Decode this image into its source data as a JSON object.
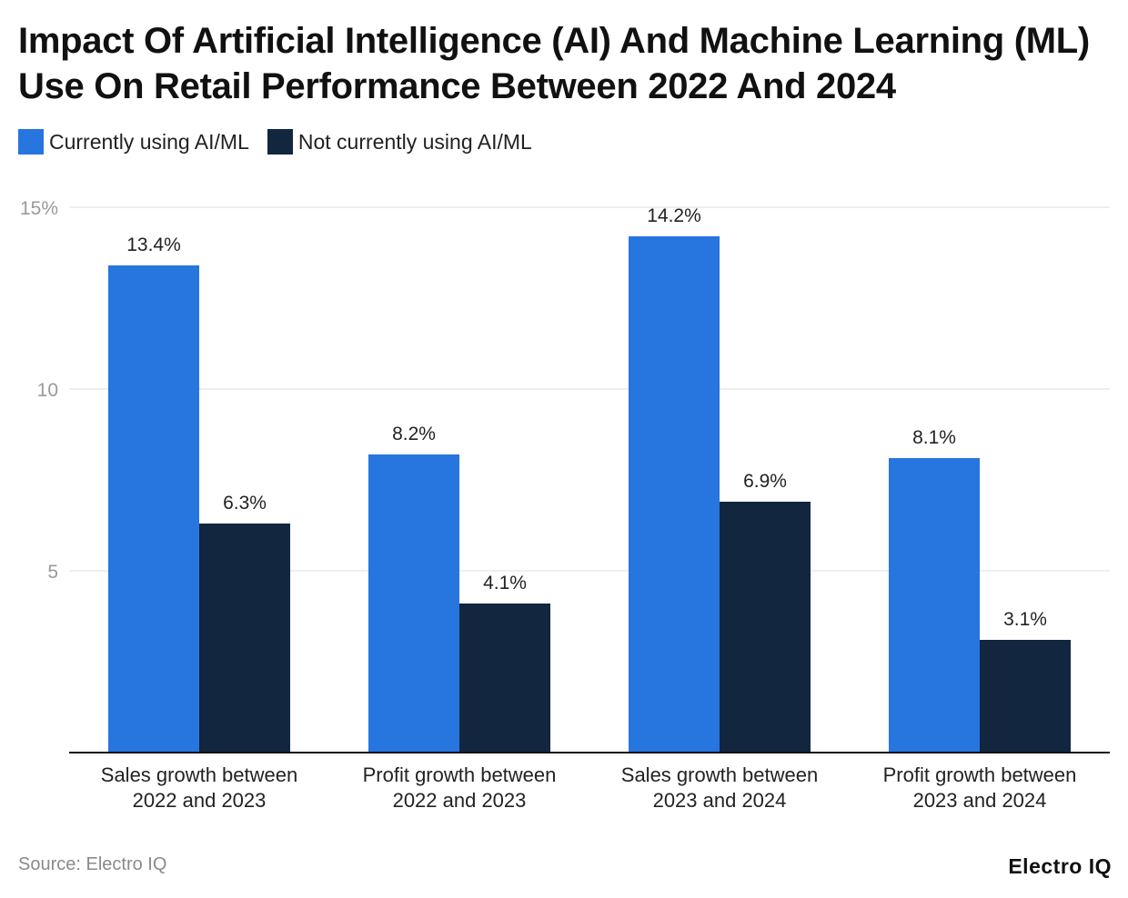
{
  "chart_data": {
    "type": "bar",
    "title": "Impact Of Artificial Intelligence (AI) And Machine Learning (ML) Use On Retail Performance Between 2022 And 2024",
    "categories": [
      [
        "Sales growth between",
        "2022 and 2023"
      ],
      [
        "Profit growth between",
        "2022 and 2023"
      ],
      [
        "Sales growth between",
        "2023 and 2024"
      ],
      [
        "Profit growth between",
        "2023 and 2024"
      ]
    ],
    "series": [
      {
        "name": "Currently using AI/ML",
        "color": "#2775DF",
        "values": [
          13.4,
          8.2,
          14.2,
          8.1
        ],
        "labels": [
          "13.4%",
          "8.2%",
          "14.2%",
          "8.1%"
        ]
      },
      {
        "name": "Not currently using AI/ML",
        "color": "#12263F",
        "values": [
          6.3,
          4.1,
          6.9,
          3.1
        ],
        "labels": [
          "6.3%",
          "4.1%",
          "6.9%",
          "3.1%"
        ]
      }
    ],
    "ylim": [
      0,
      15
    ],
    "yticks": [
      {
        "value": 5,
        "label": "5"
      },
      {
        "value": 10,
        "label": "10"
      },
      {
        "value": 15,
        "label": "15%"
      }
    ],
    "xlabel": "",
    "ylabel": "",
    "grid": true,
    "legend": "top-left"
  },
  "footer": {
    "source": "Source: Electro IQ",
    "logo": "Electro IQ"
  }
}
